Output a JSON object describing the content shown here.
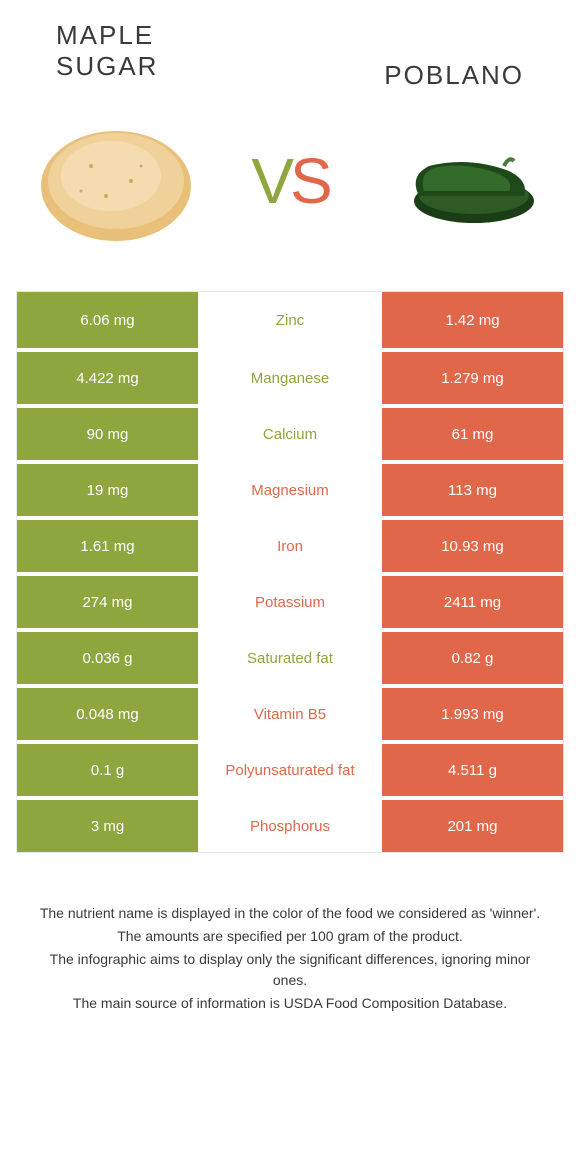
{
  "header": {
    "left_title_line1": "MAPLE",
    "left_title_line2": "SUGAR",
    "right_title": "POBLANO",
    "vs_v": "V",
    "vs_s": "S"
  },
  "colors": {
    "green": "#8da63e",
    "orange": "#e0674a",
    "background": "#ffffff",
    "text_dark": "#3a3a3a"
  },
  "rows": [
    {
      "left": "6.06 mg",
      "mid": "Zinc",
      "right": "1.42 mg",
      "winner": "left"
    },
    {
      "left": "4.422 mg",
      "mid": "Manganese",
      "right": "1.279 mg",
      "winner": "left"
    },
    {
      "left": "90 mg",
      "mid": "Calcium",
      "right": "61 mg",
      "winner": "left"
    },
    {
      "left": "19 mg",
      "mid": "Magnesium",
      "right": "113 mg",
      "winner": "right"
    },
    {
      "left": "1.61 mg",
      "mid": "Iron",
      "right": "10.93 mg",
      "winner": "right"
    },
    {
      "left": "274 mg",
      "mid": "Potassium",
      "right": "2411 mg",
      "winner": "right"
    },
    {
      "left": "0.036 g",
      "mid": "Saturated fat",
      "right": "0.82 g",
      "winner": "left"
    },
    {
      "left": "0.048 mg",
      "mid": "Vitamin B5",
      "right": "1.993 mg",
      "winner": "right"
    },
    {
      "left": "0.1 g",
      "mid": "Polyunsaturated fat",
      "right": "4.511 g",
      "winner": "right"
    },
    {
      "left": "3 mg",
      "mid": "Phosphorus",
      "right": "201 mg",
      "winner": "right"
    }
  ],
  "footer": {
    "line1": "The nutrient name is displayed in the color of the food we considered as 'winner'.",
    "line2": "The amounts are specified per 100 gram of the product.",
    "line3": "The infographic aims to display only the significant differences, ignoring minor ones.",
    "line4": "The main source of information is USDA Food Composition Database."
  }
}
